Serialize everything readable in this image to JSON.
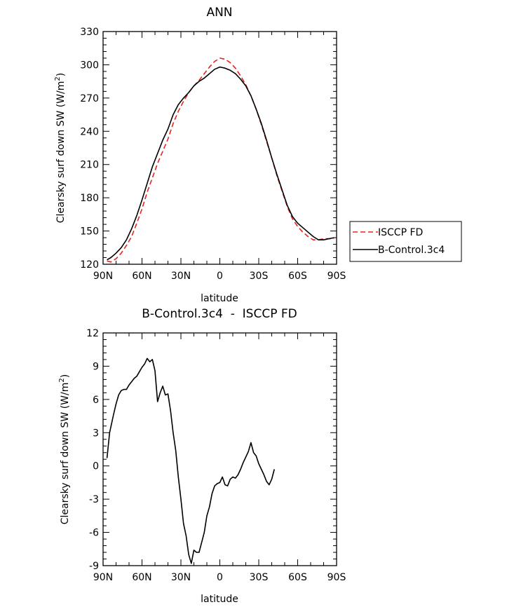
{
  "chart_data": [
    {
      "type": "line",
      "title": "ANN",
      "xlabel": "latitude",
      "ylabel": "Clearsky surf down SW (W/m",
      "ylabel_sup": "2",
      "ylabel_end": ")",
      "xlim": [
        -90,
        90
      ],
      "ylim": [
        120,
        330
      ],
      "xticks": [
        -90,
        -60,
        -30,
        0,
        30,
        60,
        90
      ],
      "xtick_labels": [
        "90N",
        "60N",
        "30N",
        "0",
        "30S",
        "60S",
        "90S"
      ],
      "yticks": [
        120,
        150,
        180,
        210,
        240,
        270,
        300,
        330
      ],
      "ytick_labels": [
        "120",
        "150",
        "180",
        "210",
        "240",
        "270",
        "300",
        "330"
      ],
      "legend": "right",
      "series": [
        {
          "name": "ISCCP FD",
          "color": "#e8231f",
          "style": "dashed",
          "x": [
            -87,
            -84,
            -80,
            -76,
            -72,
            -68,
            -64,
            -60,
            -56,
            -52,
            -48,
            -44,
            -40,
            -36,
            -32,
            -28,
            -24,
            -20,
            -16,
            -12,
            -8,
            -4,
            0,
            4,
            8,
            12,
            16,
            20,
            24,
            28,
            32,
            36,
            40,
            44,
            48,
            52,
            56,
            60,
            64,
            68,
            72,
            76,
            80,
            84,
            88
          ],
          "y": [
            123,
            122,
            125,
            130,
            137,
            145,
            157,
            170,
            185,
            198,
            211,
            222,
            233,
            247,
            258,
            267,
            275,
            281,
            286,
            292,
            298,
            303,
            306,
            305,
            302,
            297,
            290,
            282,
            272,
            260,
            246,
            231,
            216,
            200,
            186,
            172,
            161,
            154,
            149,
            145,
            142,
            142,
            143,
            143,
            143
          ]
        },
        {
          "name": "B-Control.3c4",
          "color": "#000000",
          "style": "solid",
          "x": [
            -87,
            -84,
            -80,
            -76,
            -72,
            -68,
            -64,
            -60,
            -56,
            -52,
            -48,
            -44,
            -40,
            -36,
            -32,
            -28,
            -24,
            -20,
            -16,
            -12,
            -8,
            -4,
            0,
            4,
            8,
            12,
            16,
            20,
            24,
            28,
            32,
            36,
            40,
            44,
            48,
            52,
            56,
            60,
            64,
            68,
            72,
            76,
            80,
            84,
            88
          ],
          "y": [
            124,
            126,
            130,
            135,
            142,
            152,
            164,
            178,
            193,
            208,
            220,
            232,
            242,
            255,
            264,
            270,
            275,
            281,
            285,
            288,
            292,
            296,
            298,
            297,
            295,
            292,
            287,
            281,
            272,
            260,
            247,
            232,
            216,
            201,
            187,
            173,
            163,
            157,
            153,
            149,
            145,
            142,
            142,
            143,
            144
          ]
        }
      ]
    },
    {
      "type": "line",
      "title": "B-Control.3c4  -  ISCCP FD",
      "xlabel": "latitude",
      "ylabel": "Clearsky surf down SW (W/m",
      "ylabel_sup": "2",
      "ylabel_end": ")",
      "xlim": [
        -90,
        90
      ],
      "ylim": [
        -9,
        12
      ],
      "xticks": [
        -90,
        -60,
        -30,
        0,
        30,
        60,
        90
      ],
      "xtick_labels": [
        "90N",
        "60N",
        "30N",
        "0",
        "30S",
        "60S",
        "90S"
      ],
      "yticks": [
        -9,
        -6,
        -3,
        0,
        3,
        6,
        9,
        12
      ],
      "ytick_labels": [
        "-9",
        "-6",
        "-3",
        "0",
        "3",
        "6",
        "9",
        "12"
      ],
      "series": [
        {
          "name": "B-Control.3c4 - ISCCP FD",
          "color": "#000000",
          "style": "solid",
          "x": [
            -87,
            -85,
            -82,
            -80,
            -78,
            -76,
            -74,
            -72,
            -70,
            -68,
            -66,
            -64,
            -62,
            -60,
            -58,
            -56,
            -54,
            -52,
            -50,
            -48,
            -46,
            -44,
            -42,
            -40,
            -38,
            -36,
            -34,
            -32,
            -30,
            -28,
            -26,
            -24,
            -22,
            -20,
            -18,
            -16,
            -14,
            -12,
            -10,
            -8,
            -6,
            -4,
            -2,
            0,
            2,
            4,
            6,
            8,
            10,
            12,
            14,
            16,
            18,
            20,
            22,
            24,
            26,
            28,
            30,
            32,
            34,
            36,
            38,
            40,
            42,
            44,
            46,
            48,
            50,
            52,
            54,
            56,
            58,
            60,
            62,
            64,
            66,
            68,
            70,
            72,
            74,
            76,
            78,
            80,
            82,
            84,
            86,
            88
          ],
          "y": [
            0.7,
            3.0,
            4.6,
            5.6,
            6.4,
            6.8,
            6.9,
            6.9,
            7.3,
            7.6,
            7.9,
            8.1,
            8.5,
            8.9,
            9.2,
            9.7,
            9.4,
            9.6,
            8.6,
            5.8,
            6.6,
            7.2,
            6.4,
            6.5,
            5.0,
            3.0,
            1.4,
            -1.0,
            -3.0,
            -5.2,
            -6.3,
            -8.0,
            -8.8,
            -7.6,
            -7.8,
            -7.8,
            -6.9,
            -6.0,
            -4.5,
            -3.7,
            -2.5,
            -1.8,
            -1.6,
            -1.5,
            -1.0,
            -1.7,
            -1.8,
            -1.2,
            -1.0,
            -1.1,
            -0.8,
            -0.3,
            0.3,
            0.8,
            1.3,
            2.1,
            1.2,
            0.9,
            0.2,
            -0.3,
            -0.8,
            -1.4,
            -1.7,
            -1.2,
            -0.3,
            null,
            null,
            null,
            null,
            null,
            null,
            null,
            null,
            null,
            null,
            null,
            null,
            null,
            null,
            null,
            null,
            null,
            null,
            null,
            null,
            null,
            null,
            null
          ]
        }
      ]
    }
  ]
}
